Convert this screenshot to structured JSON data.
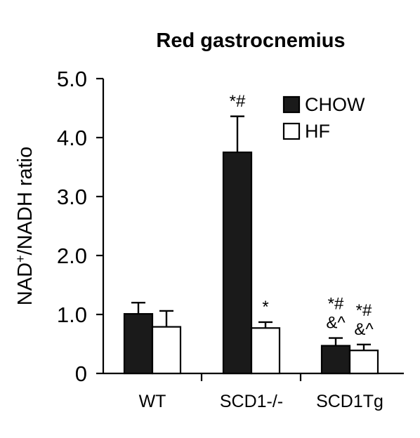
{
  "chart_data": {
    "type": "bar",
    "title": "Red gastrocnemius",
    "ylabel_main": "NAD",
    "ylabel_sup": "+",
    "ylabel_rest": "/NADH ratio",
    "xlabel": "",
    "categories": [
      "WT",
      "SCD1-/-",
      "SCD1Tg"
    ],
    "ylim": [
      0,
      5
    ],
    "yticks": [
      0,
      1,
      2,
      3,
      4,
      5
    ],
    "ytick_labels": [
      "0",
      "1.0",
      "2.0",
      "3.0",
      "4.0",
      "5.0"
    ],
    "series": [
      {
        "name": "CHOW",
        "fill": "#1a1a1a",
        "values": [
          1.01,
          3.75,
          0.47
        ],
        "errors": [
          0.19,
          0.61,
          0.13
        ]
      },
      {
        "name": "HF",
        "fill": "#ffffff",
        "values": [
          0.79,
          0.77,
          0.39
        ],
        "errors": [
          0.27,
          0.1,
          0.1
        ]
      }
    ],
    "annotations": [
      {
        "category": 1,
        "series": 0,
        "lines": [
          "*#"
        ]
      },
      {
        "category": 1,
        "series": 1,
        "lines": [
          "*"
        ]
      },
      {
        "category": 2,
        "series": 0,
        "lines": [
          "*#",
          "&^"
        ]
      },
      {
        "category": 2,
        "series": 1,
        "lines": [
          "*#",
          "&^"
        ]
      }
    ],
    "legend_position": "top-right",
    "grid": false
  }
}
